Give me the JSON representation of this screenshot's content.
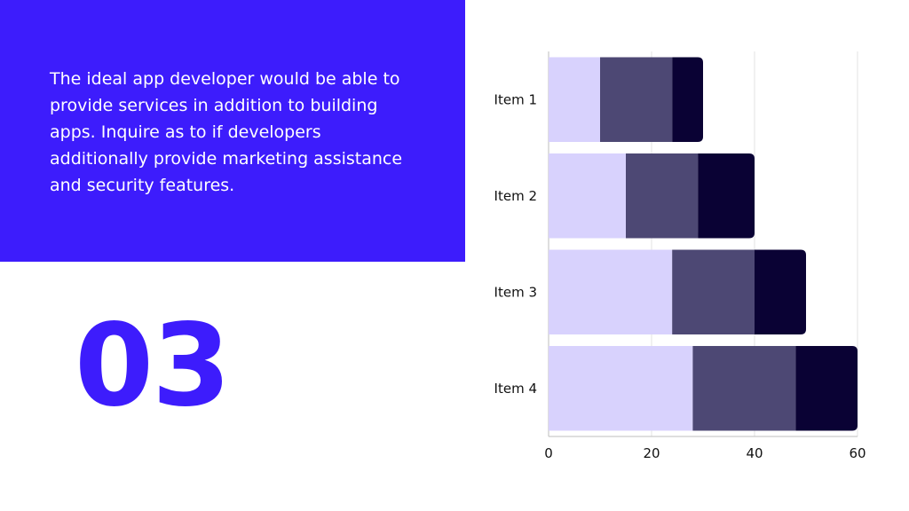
{
  "slide": {
    "description": "The ideal app developer would be able to provide services in addition to building apps. Inquire as to if developers additionally provide marketing assistance and security features.",
    "number": "03"
  },
  "colors": {
    "panel": "#3d1cfc",
    "number": "#3d1cfc",
    "series": [
      "#d8d2fd",
      "#4d4874",
      "#0a0234"
    ]
  },
  "chart_data": {
    "type": "bar",
    "orientation": "horizontal",
    "stacked": true,
    "categories": [
      "Item 1",
      "Item 2",
      "Item 3",
      "Item 4"
    ],
    "series": [
      {
        "values": [
          10,
          15,
          24,
          28
        ]
      },
      {
        "values": [
          14,
          14,
          16,
          20
        ]
      },
      {
        "values": [
          6,
          11,
          10,
          12
        ]
      }
    ],
    "xlim": [
      0,
      60
    ],
    "xticks": [
      0,
      20,
      40,
      60
    ],
    "grid": true,
    "legend": false,
    "title": "",
    "xlabel": "",
    "ylabel": ""
  }
}
